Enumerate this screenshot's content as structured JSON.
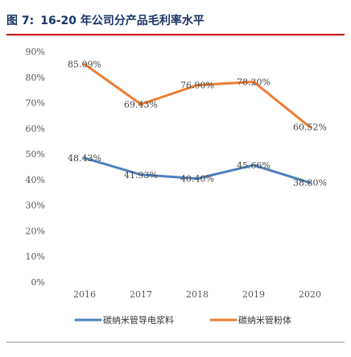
{
  "header": {
    "figure_label": "图 7:",
    "title": "16-20 年公司分产品毛利率水平"
  },
  "chart_data": {
    "type": "line",
    "title": "16-20 年公司分产品毛利率水平",
    "categories": [
      "2016",
      "2017",
      "2018",
      "2019",
      "2020"
    ],
    "series": [
      {
        "name": "碳纳米管导电浆料",
        "color": "#4f81bd",
        "values": [
          48.43,
          41.93,
          40.4,
          45.66,
          38.8
        ],
        "labels": [
          "48.43%",
          "41.93%",
          "40.40%",
          "45.66%",
          "38.80%"
        ]
      },
      {
        "name": "碳纳米管粉体",
        "color": "#ed7d31",
        "values": [
          85.09,
          69.43,
          76.9,
          78.2,
          60.52
        ],
        "labels": [
          "85.09%",
          "69.43%",
          "76.90%",
          "78.20%",
          "60.52%"
        ]
      }
    ],
    "ylim": [
      0,
      90
    ],
    "yticks": [
      0,
      10,
      20,
      30,
      40,
      50,
      60,
      70,
      80,
      90
    ],
    "ytick_labels": [
      "0%",
      "10%",
      "20%",
      "30%",
      "40%",
      "50%",
      "60%",
      "70%",
      "80%",
      "90%"
    ],
    "xlabel": "",
    "ylabel": "",
    "grid": false,
    "legend_position": "bottom"
  }
}
